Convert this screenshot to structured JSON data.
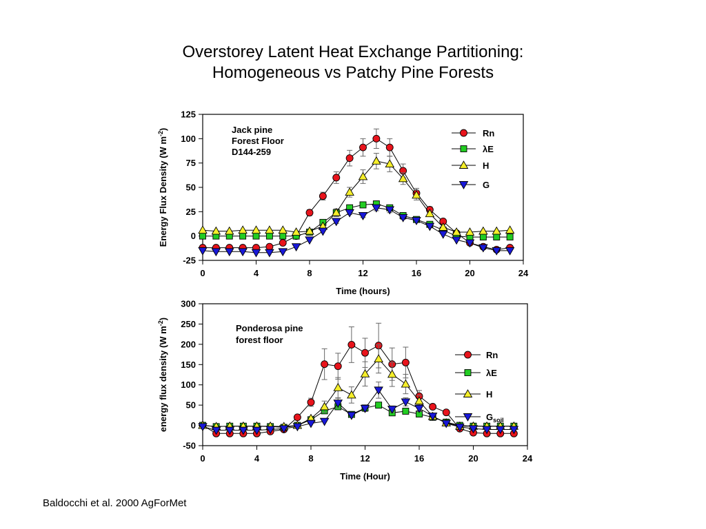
{
  "slide": {
    "title_line1": "Overstorey Latent Heat Exchange Partitioning:",
    "title_line2": "Homogeneous vs  Patchy Pine Forests",
    "footer": "Baldocchi et al. 2000 AgForMet"
  },
  "colors": {
    "Rn": "#e8141c",
    "LE": "#22cc22",
    "H": "#f5ee2a",
    "G": "#1818d8"
  },
  "chart_data": [
    {
      "type": "line",
      "annotation": [
        "Jack pine",
        "Forest Floor",
        "D144-259"
      ],
      "xlabel": "Time (hours)",
      "ylabel": "Energy Flux Density (W m",
      "ylabel_sup": "-2",
      "ylabel_close": ")",
      "xlim": [
        0,
        24
      ],
      "ylim": [
        -25,
        125
      ],
      "xticks": [
        0,
        4,
        8,
        12,
        16,
        20,
        24
      ],
      "yticks": [
        -25,
        0,
        25,
        50,
        75,
        100,
        125
      ],
      "legend_position": "top-right",
      "series": [
        {
          "key": "Rn",
          "name": "Rn",
          "marker": "circle",
          "x": [
            0,
            1,
            2,
            3,
            4,
            5,
            6,
            7,
            8,
            9,
            10,
            11,
            12,
            13,
            14,
            15,
            16,
            17,
            18,
            19,
            20,
            21,
            22,
            23
          ],
          "y": [
            -12,
            -12,
            -12,
            -12,
            -12,
            -11,
            -7,
            0,
            24,
            41,
            60,
            80,
            91,
            100,
            91,
            67,
            44,
            27,
            15,
            3,
            -7,
            -11,
            -14,
            -12
          ],
          "err": [
            0,
            0,
            0,
            0,
            0,
            0,
            0,
            0,
            3,
            4,
            6,
            8,
            9,
            10,
            9,
            7,
            5,
            3,
            2,
            0,
            0,
            0,
            0,
            0
          ]
        },
        {
          "key": "LE",
          "name": "λE",
          "marker": "square",
          "x": [
            0,
            1,
            2,
            3,
            4,
            5,
            6,
            7,
            8,
            9,
            10,
            11,
            12,
            13,
            14,
            15,
            16,
            17,
            18,
            19,
            20,
            21,
            22,
            23
          ],
          "y": [
            0,
            0,
            0,
            0,
            0,
            0,
            0,
            0,
            4,
            14,
            24,
            29,
            32,
            33,
            29,
            21,
            17,
            12,
            6,
            0,
            -1,
            -1,
            -1,
            -1
          ],
          "err": [
            0,
            0,
            0,
            0,
            0,
            0,
            0,
            0,
            0,
            2,
            2,
            3,
            3,
            3,
            2,
            2,
            0,
            0,
            0,
            0,
            0,
            0,
            0,
            0
          ]
        },
        {
          "key": "H",
          "name": "H",
          "marker": "triangle-up",
          "x": [
            0,
            1,
            2,
            3,
            4,
            5,
            6,
            7,
            8,
            9,
            10,
            11,
            12,
            13,
            14,
            15,
            16,
            17,
            18,
            19,
            20,
            21,
            22,
            23
          ],
          "y": [
            6,
            5,
            5,
            6,
            6,
            6,
            6,
            4,
            5,
            10,
            24,
            45,
            61,
            77,
            74,
            59,
            42,
            23,
            9,
            4,
            4,
            5,
            5,
            6
          ],
          "err": [
            0,
            0,
            0,
            0,
            0,
            0,
            0,
            0,
            0,
            2,
            4,
            5,
            7,
            8,
            8,
            6,
            5,
            3,
            0,
            0,
            0,
            0,
            0,
            0
          ]
        },
        {
          "key": "G",
          "name": "G",
          "marker": "triangle-down",
          "x": [
            0,
            1,
            2,
            3,
            4,
            5,
            6,
            7,
            8,
            9,
            10,
            11,
            12,
            13,
            14,
            15,
            16,
            17,
            18,
            19,
            20,
            21,
            22,
            23
          ],
          "y": [
            -15,
            -16,
            -16,
            -16,
            -17,
            -17,
            -16,
            -11,
            -4,
            5,
            15,
            24,
            21,
            29,
            27,
            19,
            16,
            10,
            2,
            -4,
            -7,
            -12,
            -15,
            -15
          ],
          "err": [
            0,
            0,
            0,
            0,
            0,
            0,
            0,
            0,
            0,
            0,
            2,
            2,
            2,
            3,
            3,
            2,
            0,
            0,
            0,
            0,
            0,
            0,
            0,
            0
          ]
        }
      ]
    },
    {
      "type": "line",
      "annotation": [
        "Ponderosa pine",
        "forest floor"
      ],
      "xlabel": "Time (Hour)",
      "ylabel": "energy flux density (W m",
      "ylabel_sup": "-2",
      "ylabel_close": ")",
      "xlim": [
        0,
        24
      ],
      "ylim": [
        -50,
        300
      ],
      "xticks": [
        0,
        4,
        8,
        12,
        16,
        20,
        24
      ],
      "yticks": [
        -50,
        0,
        50,
        100,
        150,
        200,
        250,
        300
      ],
      "legend_position": "right",
      "series": [
        {
          "key": "Rn",
          "name": "Rn",
          "marker": "circle",
          "x": [
            0,
            1,
            2,
            3,
            4,
            5,
            6,
            7,
            8,
            9,
            10,
            11,
            12,
            13,
            14,
            15,
            16,
            17,
            18,
            19,
            20,
            21,
            22,
            23
          ],
          "y": [
            0,
            -20,
            -20,
            -20,
            -20,
            -15,
            -10,
            20,
            57,
            151,
            146,
            199,
            179,
            197,
            151,
            155,
            72,
            46,
            32,
            -8,
            -18,
            -20,
            -20,
            -20
          ],
          "err": [
            0,
            0,
            0,
            0,
            0,
            0,
            0,
            0,
            10,
            38,
            32,
            44,
            36,
            55,
            40,
            38,
            14,
            0,
            0,
            0,
            0,
            0,
            0,
            0
          ]
        },
        {
          "key": "LE",
          "name": "λE",
          "marker": "square",
          "x": [
            0,
            1,
            2,
            3,
            4,
            5,
            6,
            7,
            8,
            9,
            10,
            11,
            12,
            13,
            14,
            15,
            16,
            17,
            18,
            19,
            20,
            21,
            22,
            23
          ],
          "y": [
            0,
            -3,
            -2,
            -2,
            -2,
            -3,
            -5,
            0,
            14,
            36,
            46,
            27,
            43,
            50,
            31,
            35,
            28,
            20,
            8,
            0,
            -2,
            -2,
            -2,
            -2
          ],
          "err": [
            0,
            0,
            0,
            0,
            0,
            0,
            0,
            0,
            0,
            5,
            6,
            4,
            5,
            5,
            4,
            5,
            4,
            0,
            0,
            0,
            0,
            0,
            0,
            0
          ]
        },
        {
          "key": "H",
          "name": "H",
          "marker": "triangle-up",
          "x": [
            0,
            1,
            2,
            3,
            4,
            5,
            6,
            7,
            8,
            9,
            10,
            11,
            12,
            13,
            14,
            15,
            16,
            17,
            18,
            19,
            20,
            21,
            22,
            23
          ],
          "y": [
            0,
            -3,
            -2,
            -2,
            -2,
            -2,
            -3,
            0,
            17,
            46,
            93,
            75,
            127,
            164,
            126,
            102,
            60,
            22,
            6,
            -2,
            -2,
            -2,
            -2,
            -2
          ],
          "err": [
            0,
            0,
            0,
            0,
            0,
            0,
            0,
            0,
            0,
            14,
            25,
            20,
            30,
            35,
            30,
            24,
            14,
            0,
            0,
            0,
            0,
            0,
            0,
            0
          ]
        },
        {
          "key": "G",
          "name": "G",
          "name_sub": "soil",
          "marker": "triangle-down",
          "x": [
            0,
            1,
            2,
            3,
            4,
            5,
            6,
            7,
            8,
            9,
            10,
            11,
            12,
            13,
            14,
            15,
            16,
            17,
            18,
            19,
            20,
            21,
            22,
            23
          ],
          "y": [
            -3,
            -12,
            -12,
            -12,
            -12,
            -10,
            -8,
            -3,
            5,
            10,
            55,
            25,
            42,
            87,
            40,
            58,
            42,
            23,
            5,
            -4,
            -8,
            -10,
            -10,
            -10
          ],
          "err": [
            0,
            0,
            0,
            0,
            0,
            0,
            0,
            0,
            0,
            0,
            12,
            6,
            8,
            20,
            8,
            10,
            8,
            0,
            0,
            0,
            0,
            0,
            0,
            0
          ]
        }
      ]
    }
  ]
}
